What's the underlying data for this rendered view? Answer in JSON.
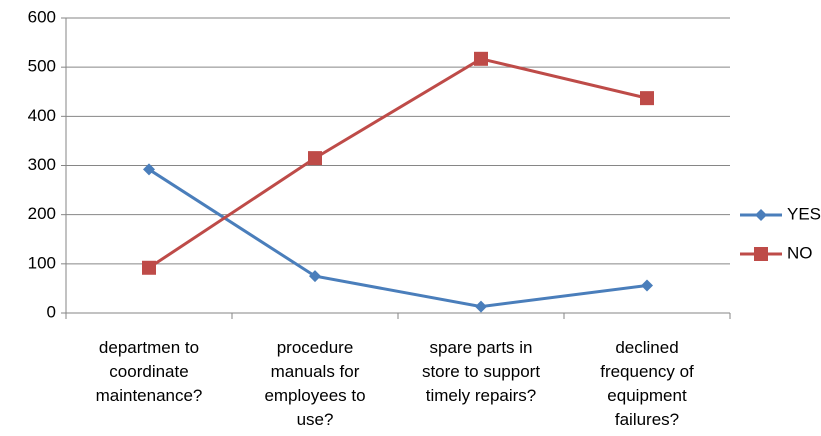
{
  "chart_data": {
    "type": "line",
    "categories": [
      "departmen to coordinate maintenance?",
      "procedure manuals for employees to use?",
      "spare parts in store to support timely repairs?",
      "declined frequency of equipment failures?"
    ],
    "series": [
      {
        "name": "YES",
        "color": "#4a7ebb",
        "marker": "diamond",
        "values": [
          292,
          75,
          13,
          56
        ]
      },
      {
        "name": "NO",
        "color": "#be4b48",
        "marker": "square",
        "values": [
          92,
          315,
          517,
          437
        ]
      }
    ],
    "ylim": [
      0,
      600
    ],
    "yticks": [
      0,
      100,
      200,
      300,
      400,
      500,
      600
    ],
    "grid": true,
    "legend": "right"
  }
}
